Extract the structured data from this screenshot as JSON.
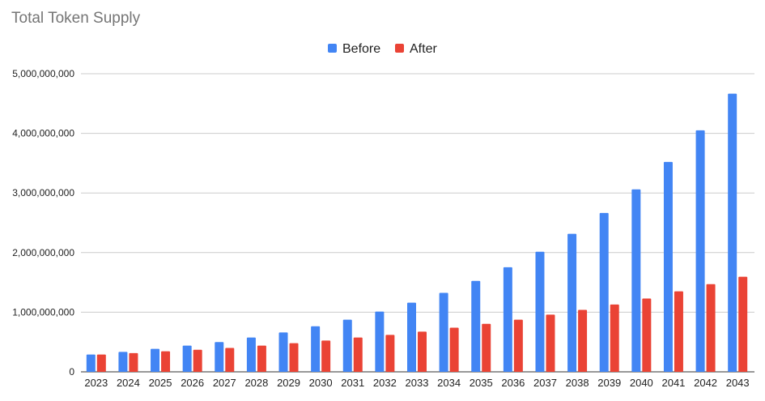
{
  "chart_data": {
    "type": "bar",
    "title": "Total Token Supply",
    "xlabel": "",
    "ylabel": "",
    "ylim": [
      0,
      5000000000
    ],
    "yticks": [
      0,
      1000000000,
      2000000000,
      3000000000,
      4000000000,
      5000000000
    ],
    "ytick_labels": [
      "0",
      "1,000,000,000",
      "2,000,000,000",
      "3,000,000,000",
      "4,000,000,000",
      "5,000,000,000"
    ],
    "grid": true,
    "legend_position": "top",
    "categories": [
      "2023",
      "2024",
      "2025",
      "2026",
      "2027",
      "2028",
      "2029",
      "2030",
      "2031",
      "2032",
      "2033",
      "2034",
      "2035",
      "2036",
      "2037",
      "2038",
      "2039",
      "2040",
      "2041",
      "2042",
      "2043"
    ],
    "series": [
      {
        "name": "Before",
        "color": "#4285f4",
        "values": [
          290000000,
          335000000,
          385000000,
          440000000,
          500000000,
          575000000,
          660000000,
          765000000,
          875000000,
          1010000000,
          1160000000,
          1325000000,
          1525000000,
          1755000000,
          2015000000,
          2315000000,
          2665000000,
          3060000000,
          3520000000,
          4050000000,
          4665000000
        ]
      },
      {
        "name": "After",
        "color": "#ea4335",
        "values": [
          290000000,
          315000000,
          345000000,
          370000000,
          400000000,
          440000000,
          480000000,
          525000000,
          575000000,
          620000000,
          675000000,
          740000000,
          805000000,
          875000000,
          960000000,
          1040000000,
          1130000000,
          1230000000,
          1350000000,
          1470000000,
          1595000000
        ]
      }
    ]
  }
}
